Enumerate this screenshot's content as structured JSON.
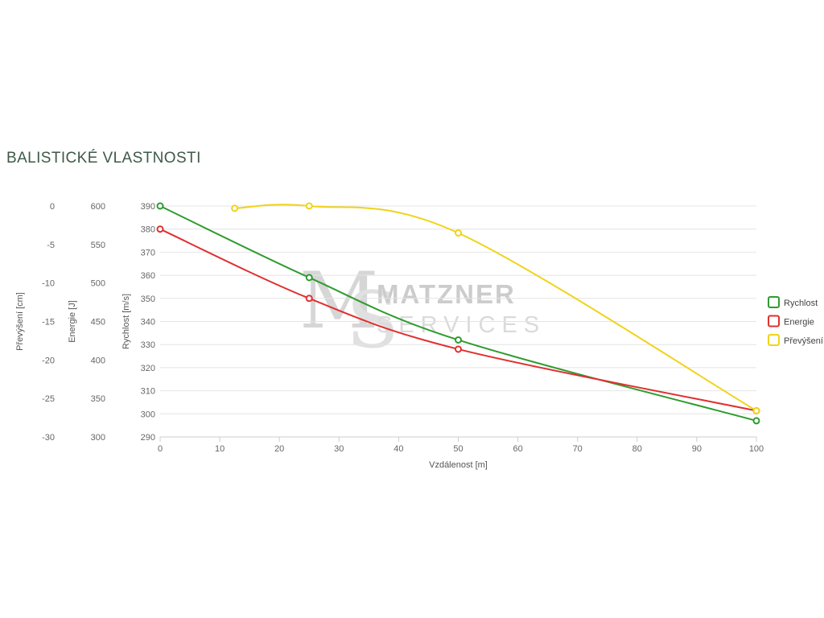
{
  "page": {
    "title": "BALISTICKÉ VLASTNOSTI"
  },
  "watermark": {
    "monogram_m": "M",
    "monogram_s": "S",
    "line1": "MATZNER",
    "line2": "SERVICES"
  },
  "chart_data": {
    "type": "line",
    "title": "Balistické vlastnosti",
    "x_label": "Vzdálenost [m]",
    "x_range": [
      0,
      100
    ],
    "x_ticks": [
      0,
      10,
      20,
      30,
      40,
      50,
      60,
      70,
      80,
      90,
      100
    ],
    "grid": "horizontal",
    "grid_axis": "rychlost",
    "axes": [
      {
        "id": "prevyseni",
        "label": "Převýšení [cm]",
        "range": [
          -30,
          0
        ],
        "ticks": [
          0,
          -5,
          -10,
          -15,
          -20,
          -25,
          -30
        ]
      },
      {
        "id": "energie",
        "label": "Energie [J]",
        "range": [
          300,
          600
        ],
        "ticks": [
          600,
          550,
          500,
          450,
          400,
          350,
          300
        ]
      },
      {
        "id": "rychlost",
        "label": "Rychlost [m/s]",
        "range": [
          290,
          390
        ],
        "ticks": [
          390,
          380,
          370,
          360,
          350,
          340,
          330,
          320,
          310,
          300,
          290
        ]
      }
    ],
    "series": [
      {
        "name": "Rychlost",
        "axis": "rychlost",
        "color": "#2f9b2f",
        "points": [
          [
            0,
            390
          ],
          [
            25,
            359
          ],
          [
            50,
            332
          ],
          [
            100,
            297
          ]
        ]
      },
      {
        "name": "Energie",
        "axis": "energie",
        "color": "#e03030",
        "points": [
          [
            0,
            570
          ],
          [
            25,
            480
          ],
          [
            50,
            414
          ],
          [
            100,
            334
          ]
        ]
      },
      {
        "name": "Převýšení",
        "axis": "prevyseni",
        "color": "#f0d319",
        "points": [
          [
            12.5,
            -0.3
          ],
          [
            25,
            0
          ],
          [
            50,
            -3.5
          ],
          [
            100,
            -26.6
          ]
        ]
      }
    ],
    "legend": {
      "position": "right",
      "entries": [
        "Rychlost",
        "Energie",
        "Převýšení"
      ]
    },
    "colors": {
      "grid": "#e4e4e4",
      "axis_line": "#cccccc",
      "axis_text": "#666666"
    }
  }
}
